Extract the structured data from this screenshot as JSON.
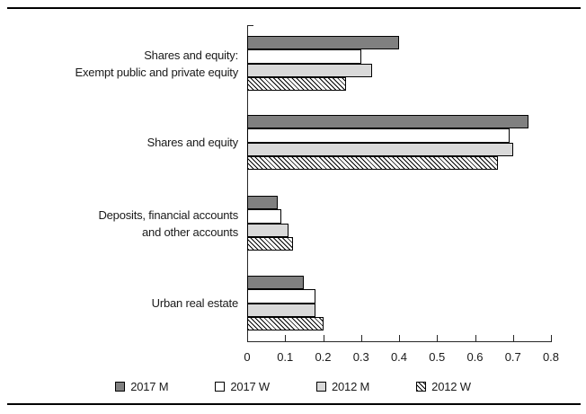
{
  "chart_data": {
    "type": "bar",
    "orientation": "horizontal",
    "title": "",
    "xlabel": "",
    "ylabel": "",
    "grid": false,
    "categories": [
      {
        "lines": [
          "Shares and equity:",
          "Exempt public and private equity"
        ]
      },
      {
        "lines": [
          "Shares and equity"
        ]
      },
      {
        "lines": [
          "Deposits, financial accounts",
          "and other accounts"
        ]
      },
      {
        "lines": [
          "Urban real estate"
        ]
      }
    ],
    "series": [
      {
        "name": "2017 M",
        "style": "solid",
        "color": "#808080",
        "values": [
          0.4,
          0.74,
          0.08,
          0.15
        ]
      },
      {
        "name": "2017 W",
        "style": "solid",
        "color": "#ffffff",
        "values": [
          0.3,
          0.69,
          0.09,
          0.18
        ]
      },
      {
        "name": "2012 M",
        "style": "solid",
        "color": "#d9d9d9",
        "values": [
          0.33,
          0.7,
          0.11,
          0.18
        ]
      },
      {
        "name": "2012 W",
        "style": "hatched",
        "color": "#ffffff",
        "values": [
          0.26,
          0.66,
          0.12,
          0.2
        ]
      }
    ],
    "x_axis": {
      "min": 0,
      "max": 0.8,
      "tick_step": 0.1,
      "tick_labels": [
        "0",
        "0.1",
        "0.2",
        "0.3",
        "0.4",
        "0.5",
        "0.6",
        "0.7",
        "0.8"
      ]
    },
    "legend": {
      "position": "bottom",
      "entries": [
        "2017 M",
        "2017 W",
        "2012 M",
        "2012 W"
      ]
    },
    "colors": {
      "dark_gray": "#808080",
      "light_gray": "#d9d9d9",
      "white": "#ffffff",
      "line": "#262626",
      "text": "#1a1a1a",
      "hatch_line": "#000000"
    }
  }
}
